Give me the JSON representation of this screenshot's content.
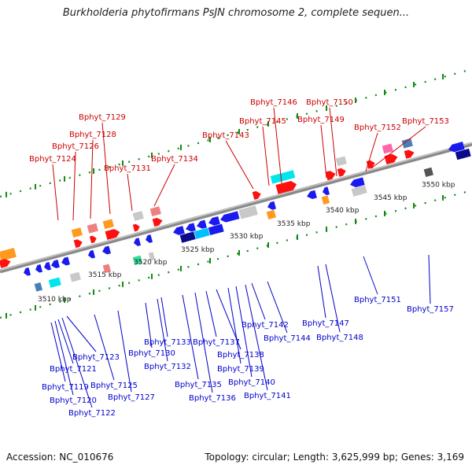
{
  "title": "Burkholderia phytofirmans PsJN chromosome 2, complete sequen...",
  "footer": {
    "accession": "Accession: NC_010676",
    "topology": "Topology: circular; Length: 3,625,999 bp; Genes: 3,169"
  },
  "colors": {
    "red": "#ff1010",
    "blue": "#1a1aee",
    "orange": "#ff9a1e",
    "label_top": "#cc0000",
    "label_bottom": "#0000cc",
    "dots": "#138a13",
    "backbone": "#8a8a8a"
  },
  "scale_labels": [
    "3510 kbp",
    "3515 kbp",
    "3520 kbp",
    "3525 kbp",
    "3530 kbp",
    "3535 kbp",
    "3540 kbp",
    "3545 kbp",
    "3550 kbp"
  ],
  "top_labels": [
    "Bphyt_7124",
    "Bphyt_7126",
    "Bphyt_7128",
    "Bphyt_7129",
    "Bphyt_7131",
    "Bphyt_7134",
    "Bphyt_7143",
    "Bphyt_7145",
    "Bphyt_7146",
    "Bphyt_7149",
    "Bphyt_7150",
    "Bphyt_7152",
    "Bphyt_7153"
  ],
  "bottom_labels": [
    "Bphyt_7119",
    "Bphyt_7120",
    "Bphyt_7121",
    "Bphyt_7122",
    "Bphyt_7123",
    "Bphyt_7125",
    "Bphyt_7127",
    "Bphyt_7130",
    "Bphyt_7132",
    "Bphyt_7133",
    "Bphyt_7135",
    "Bphyt_7136",
    "Bphyt_7137",
    "Bphyt_7138",
    "Bphyt_7139",
    "Bphyt_7140",
    "Bphyt_7141",
    "Bphyt_7142",
    "Bphyt_7144",
    "Bphyt_7147",
    "Bphyt_7148",
    "Bphyt_7151",
    "Bphyt_7157"
  ]
}
